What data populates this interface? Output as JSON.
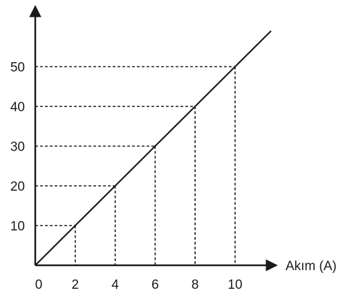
{
  "chart_data": {
    "type": "line",
    "title": "",
    "xlabel": "Akım (A)",
    "ylabel": "",
    "x_ticks": [
      "0",
      "2",
      "4",
      "6",
      "8",
      "10"
    ],
    "y_ticks": [
      "10",
      "20",
      "30",
      "40",
      "50"
    ],
    "xlim": [
      0,
      11.8
    ],
    "ylim": [
      0,
      50
    ],
    "grid": false,
    "series": [
      {
        "x": [
          0,
          2,
          4,
          6,
          8,
          10
        ],
        "y": [
          0,
          10,
          20,
          30,
          40,
          50
        ]
      }
    ],
    "guide_points": [
      {
        "x": 2,
        "y": 10
      },
      {
        "x": 4,
        "y": 20
      },
      {
        "x": 6,
        "y": 30
      },
      {
        "x": 8,
        "y": 40
      },
      {
        "x": 10,
        "y": 50
      }
    ],
    "colors": {
      "line": "#1a1a1a",
      "axis": "#1a1a1a",
      "guide": "#1a1a1a"
    }
  }
}
